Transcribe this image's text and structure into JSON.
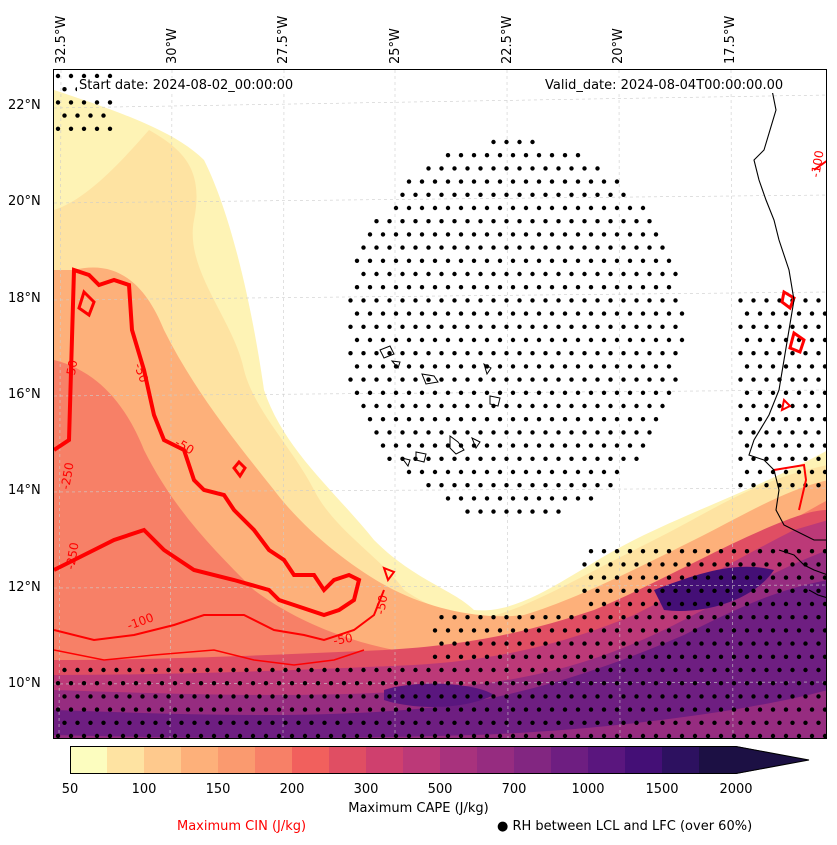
{
  "map": {
    "start_date": "Start date: 2024-08-02_00:00:00",
    "valid_date": "Valid_date: 2024-08-04T00:00:00.00",
    "lon_labels": [
      "32.5°W",
      "30°W",
      "27.5°W",
      "25°W",
      "22.5°W",
      "20°W",
      "17.5°W"
    ],
    "lat_labels": [
      "22°N",
      "20°N",
      "18°N",
      "16°N",
      "14°N",
      "12°N",
      "10°N"
    ],
    "cin_contour_labels": [
      "-50",
      "-50",
      "-50",
      "-100",
      "-250",
      "-250",
      "-50",
      "-50",
      "-100"
    ],
    "colors": {
      "cin_contour": "#ff0000",
      "coast": "#000000",
      "grid": "#cccccc",
      "rh_dots": "#000000"
    }
  },
  "colorbar": {
    "label": "Maximum CAPE (J/kg)",
    "ticks": [
      "50",
      "100",
      "150",
      "200",
      "300",
      "500",
      "700",
      "1000",
      "1500",
      "2000"
    ],
    "colors": [
      "#fcfdbf",
      "#fee3a2",
      "#fec98d",
      "#fdb07a",
      "#fa9a6f",
      "#f78067",
      "#f1605d",
      "#e04e63",
      "#cf406e",
      "#bc3978",
      "#a8327d",
      "#962c80",
      "#822681",
      "#6e1e81",
      "#5a167e",
      "#440f76",
      "#2d1160",
      "#1c1044"
    ]
  },
  "legend": {
    "cin_label": "Maximum CIN (J/kg)",
    "rh_label": "● RH between LCL and LFC (over 60%)"
  }
}
